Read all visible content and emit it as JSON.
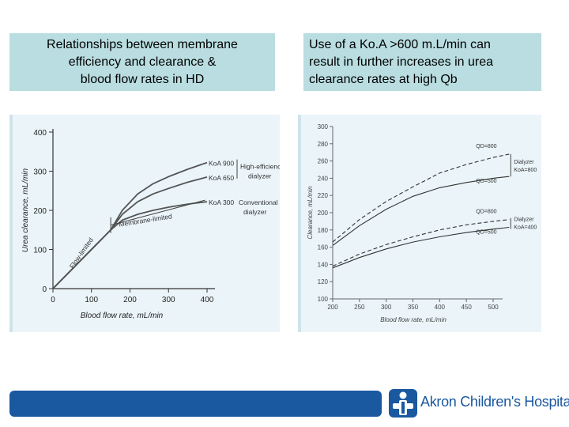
{
  "captions": {
    "left": [
      "Relationships between membrane",
      "efficiency and clearance &",
      "blood flow rates in HD"
    ],
    "right": [
      "Use of a Ko.A >600 m.L/min can",
      "result in further increases in urea",
      "clearance rates at high Qb"
    ]
  },
  "logo": {
    "text": "Akron Children's Hospital",
    "icon": "person-cross-icon"
  },
  "colors": {
    "footer": "#1a58a0",
    "caption_bg": "#b9dde1",
    "figure_bg": "#ebf5f9"
  },
  "chart_data": [
    {
      "type": "line",
      "xlabel": "Blood flow rate, mL/min",
      "ylabel": "Urea clearance, mL/min",
      "xlim": [
        0,
        400
      ],
      "ylim": [
        0,
        400
      ],
      "x_ticks": [
        0,
        100,
        200,
        300,
        400
      ],
      "y_ticks": [
        0,
        100,
        200,
        300,
        400
      ],
      "series": [
        {
          "name": "KoA 900",
          "x": [
            0,
            150,
            180,
            220,
            260,
            300,
            350,
            400
          ],
          "y": [
            0,
            150,
            200,
            242,
            268,
            286,
            305,
            322
          ]
        },
        {
          "name": "KoA 650",
          "x": [
            0,
            150,
            180,
            220,
            260,
            300,
            350,
            400
          ],
          "y": [
            0,
            150,
            190,
            222,
            242,
            256,
            272,
            285
          ]
        },
        {
          "name": "KoA 300",
          "x": [
            0,
            150,
            180,
            220,
            260,
            300,
            350,
            400
          ],
          "y": [
            0,
            150,
            175,
            190,
            200,
            208,
            216,
            222
          ]
        }
      ],
      "annotations": [
        "Flow-limited",
        "Membrane-limited",
        "High-efficiency dialyzer",
        "Conventional dialyzer"
      ],
      "grid": false
    },
    {
      "type": "line",
      "xlabel": "Blood flow rate, mL/min",
      "ylabel": "Clearance, mL/min",
      "xlim": [
        200,
        500
      ],
      "ylim": [
        100,
        300
      ],
      "x_ticks": [
        200,
        250,
        300,
        350,
        400,
        450,
        500
      ],
      "y_ticks": [
        100,
        120,
        140,
        160,
        180,
        200,
        220,
        240,
        260,
        280,
        300
      ],
      "series": [
        {
          "name": "QD=800",
          "group": "Dialyzer KoA=800",
          "dashed": true,
          "x": [
            200,
            250,
            300,
            350,
            400,
            450,
            500,
            530
          ],
          "y": [
            166,
            192,
            213,
            230,
            246,
            256,
            264,
            268
          ]
        },
        {
          "name": "QD=500",
          "group": "Dialyzer KoA=800",
          "dashed": false,
          "x": [
            200,
            250,
            300,
            350,
            400,
            450,
            500,
            530
          ],
          "y": [
            162,
            185,
            204,
            219,
            229,
            235,
            240,
            242
          ]
        },
        {
          "name": "QD=800",
          "group": "Dialyzer KoA=400",
          "dashed": true,
          "x": [
            200,
            250,
            300,
            350,
            400,
            450,
            500,
            530
          ],
          "y": [
            138,
            152,
            163,
            172,
            180,
            186,
            190,
            192
          ]
        },
        {
          "name": "QD=500",
          "group": "Dialyzer KoA=400",
          "dashed": false,
          "x": [
            200,
            250,
            300,
            350,
            400,
            450,
            500,
            530
          ],
          "y": [
            136,
            148,
            158,
            166,
            172,
            177,
            181,
            183
          ]
        }
      ],
      "legend_groups": [
        "Dialyzer KoA=800",
        "Dialyzer KoA=400"
      ],
      "grid": false
    }
  ]
}
